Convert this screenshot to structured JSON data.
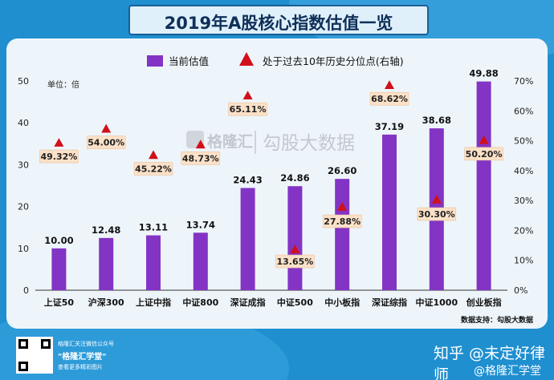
{
  "page": {
    "title": "2019年A股核心指数估值一览",
    "watermark_logo": "格隆汇",
    "watermark_text": "勾股大数据",
    "source": "数据支持：勾股大数据"
  },
  "footer": {
    "line1": "格隆汇关注微信公众号",
    "line2": "\"格隆汇学堂\"",
    "line3": "查看更多精彩图片",
    "zhihu": "知乎 @未定好律师",
    "zhihu_sub": "@格隆汇学堂"
  },
  "chart_data": {
    "type": "bar",
    "title": "2019年A股核心指数估值一览",
    "unit_label": "单位：倍",
    "categories": [
      "上证50",
      "沪深300",
      "上证中指",
      "中证800",
      "深证成指",
      "中证500",
      "中小板指",
      "深证综指",
      "中证1000",
      "创业板指"
    ],
    "series": [
      {
        "name": "当前估值",
        "type": "bar",
        "axis": "left",
        "color": "#8334c4",
        "values": [
          10.0,
          12.48,
          13.11,
          13.74,
          24.43,
          24.86,
          26.6,
          37.19,
          38.68,
          49.88
        ],
        "labels": [
          "10.00",
          "12.48",
          "13.11",
          "13.74",
          "24.43",
          "24.86",
          "26.60",
          "37.19",
          "38.68",
          "49.88"
        ]
      },
      {
        "name": "处于过去10年历史分位点(右轴)",
        "type": "marker",
        "axis": "right",
        "color": "#d0101a",
        "values": [
          49.32,
          54.0,
          45.22,
          48.73,
          65.11,
          13.65,
          27.88,
          68.62,
          30.3,
          50.2
        ],
        "labels": [
          "49.32%",
          "54.00%",
          "45.22%",
          "48.73%",
          "65.11%",
          "13.65%",
          "27.88%",
          "68.62%",
          "30.30%",
          "50.20%"
        ]
      }
    ],
    "y_left": {
      "min": 0,
      "max": 50,
      "ticks": [
        "0",
        "10",
        "20",
        "30",
        "40",
        "50"
      ]
    },
    "y_right": {
      "min": 0,
      "max": 70,
      "ticks": [
        "0%",
        "10%",
        "20%",
        "30%",
        "40%",
        "50%",
        "60%",
        "70%"
      ]
    },
    "legend_position": "top-center",
    "grid": false
  }
}
